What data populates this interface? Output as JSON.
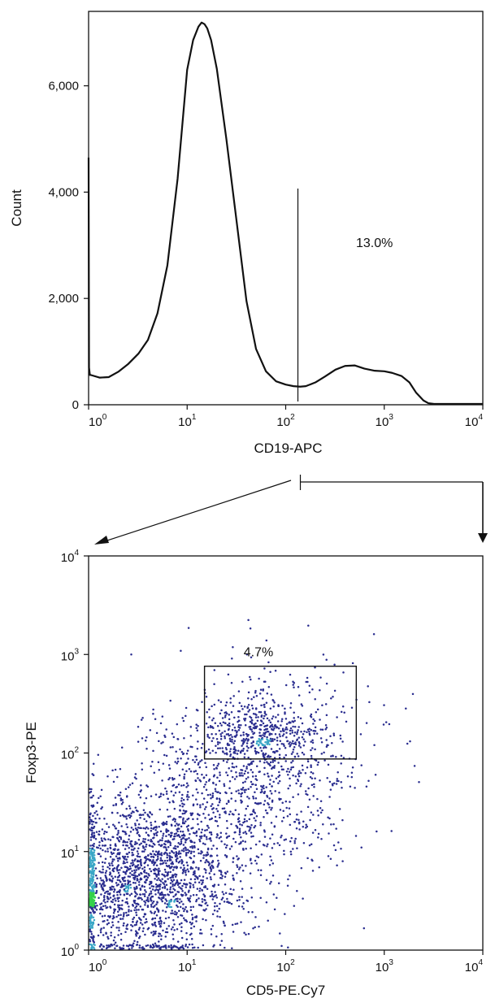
{
  "chart_data": [
    {
      "type": "line",
      "xlabel": "CD19-APC",
      "ylabel": "Count",
      "x_scale": "log",
      "xlim": [
        1,
        10000
      ],
      "ylim": [
        0,
        7400
      ],
      "x_ticks": [
        {
          "value": 1,
          "base": "10",
          "exp": "0"
        },
        {
          "value": 10,
          "base": "10",
          "exp": "1"
        },
        {
          "value": 100,
          "base": "10",
          "exp": "2"
        },
        {
          "value": 1000,
          "base": "10",
          "exp": "3"
        },
        {
          "value": 10000,
          "base": "10",
          "exp": "4"
        }
      ],
      "y_ticks": [
        {
          "value": 0,
          "label": "0"
        },
        {
          "value": 2000,
          "label": "2,000"
        },
        {
          "value": 4000,
          "label": "4,000"
        },
        {
          "value": 6000,
          "label": "6,000"
        }
      ],
      "series": [
        {
          "x": [
            1.0,
            1.01,
            1.03,
            1.05,
            1.3,
            1.6,
            2.0,
            2.5,
            3.2,
            4.0,
            5.0,
            6.3,
            8.0,
            10,
            11.5,
            13,
            14,
            15,
            16,
            17.5,
            20,
            25,
            32,
            40,
            50,
            63,
            80,
            100,
            120,
            140,
            160,
            200,
            250,
            320,
            400,
            500,
            630,
            800,
            1000,
            1200,
            1500,
            1800,
            2100,
            2500,
            2800,
            3200,
            5000,
            10000
          ],
          "y": [
            4650,
            700,
            560,
            560,
            510,
            520,
            620,
            760,
            960,
            1220,
            1720,
            2620,
            4250,
            6300,
            6860,
            7110,
            7190,
            7160,
            7080,
            6860,
            6320,
            5000,
            3400,
            1950,
            1050,
            630,
            440,
            380,
            350,
            340,
            350,
            420,
            530,
            660,
            730,
            740,
            680,
            640,
            630,
            600,
            540,
            420,
            230,
            80,
            30,
            15,
            15,
            15
          ]
        }
      ],
      "gate": {
        "x": 133,
        "label": "13.0%"
      }
    },
    {
      "type": "scatter",
      "xlabel": "CD5-PE.Cy7",
      "ylabel": "Foxp3-PE",
      "x_scale": "log",
      "y_scale": "log",
      "xlim": [
        1,
        10000
      ],
      "ylim": [
        1,
        10000
      ],
      "x_ticks": [
        {
          "value": 1,
          "base": "10",
          "exp": "0"
        },
        {
          "value": 10,
          "base": "10",
          "exp": "1"
        },
        {
          "value": 100,
          "base": "10",
          "exp": "2"
        },
        {
          "value": 1000,
          "base": "10",
          "exp": "3"
        },
        {
          "value": 10000,
          "base": "10",
          "exp": "4"
        }
      ],
      "y_ticks": [
        {
          "value": 1,
          "base": "10",
          "exp": "0"
        },
        {
          "value": 10,
          "base": "10",
          "exp": "1"
        },
        {
          "value": 100,
          "base": "10",
          "exp": "2"
        },
        {
          "value": 1000,
          "base": "10",
          "exp": "3"
        },
        {
          "value": 10000,
          "base": "10",
          "exp": "4"
        }
      ],
      "populations": [
        {
          "center_x": 3.2,
          "center_y": 5.0,
          "spread_decades_x": 0.45,
          "spread_decades_y": 0.42,
          "weight": 0.5
        },
        {
          "center_x": 55,
          "center_y": 160,
          "spread_decades_x": 0.35,
          "spread_decades_y": 0.2,
          "weight": 0.12
        },
        {
          "center_x": 30,
          "center_y": 30,
          "spread_decades_x": 0.65,
          "spread_decades_y": 0.6,
          "weight": 0.38
        }
      ],
      "gate": {
        "x_min": 15,
        "x_max": 520,
        "y_min": 87,
        "y_max": 760,
        "label": "4.7%"
      },
      "colors": {
        "sparse": "#2a2d8f",
        "medium": "#3aa6c6",
        "dense": "#34d14a"
      }
    }
  ]
}
